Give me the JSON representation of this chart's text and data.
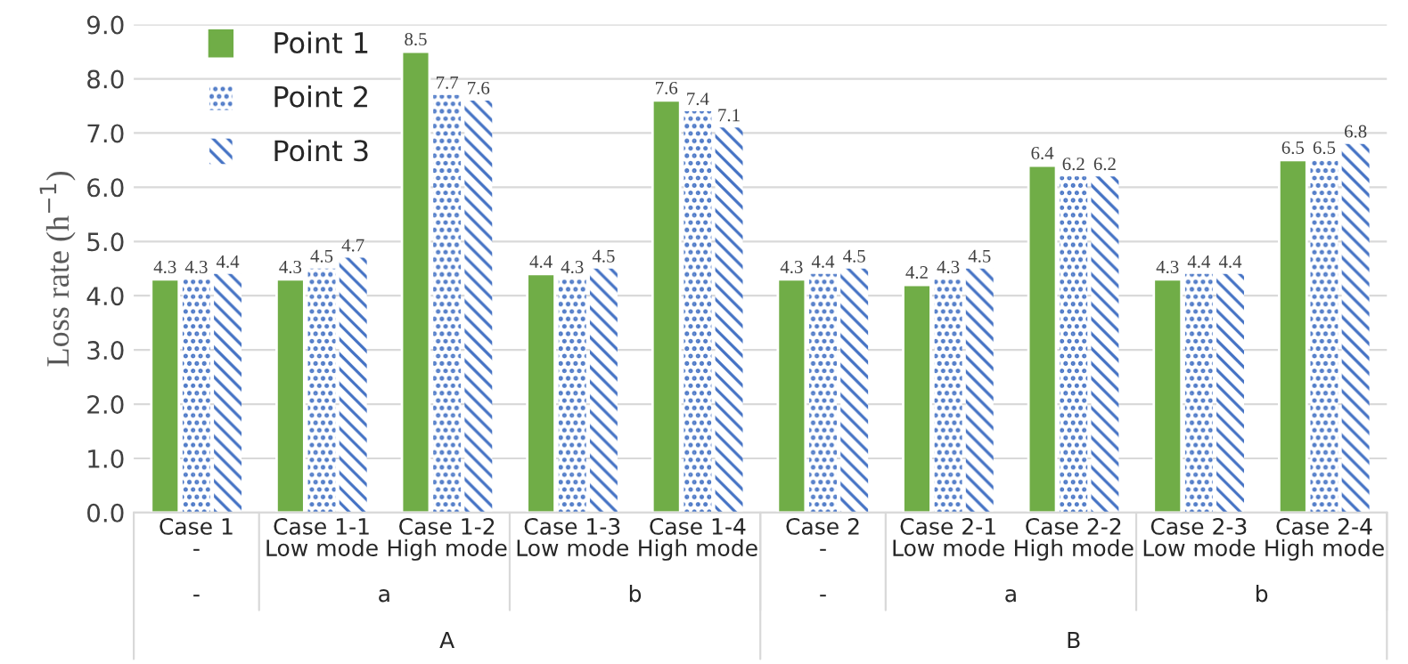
{
  "chart_data": {
    "type": "bar",
    "ylabel": "Loss rate (h$^{−1}$)",
    "categories": [
      "Case 1\n-",
      "Case 1-1\nLow mode",
      "Case 1-2\nHigh mode",
      "Case 1-3\nLow mode",
      "Case 1-4\nHigh mode",
      "Case 2\n-",
      "Case 2-1\nLow mode",
      "Case 2-2\nHigh mode",
      "Case 2-3\nLow mode",
      "Case 2-4\nHigh mode"
    ],
    "series": [
      {
        "name": "Point 1",
        "color": "#70ad47",
        "values": [
          4.3,
          4.3,
          8.5,
          4.4,
          7.6,
          4.3,
          4.2,
          6.4,
          4.3,
          6.5
        ]
      },
      {
        "name": "Point 2",
        "color": "#4472c4",
        "values": [
          4.3,
          4.5,
          7.7,
          4.3,
          7.4,
          4.4,
          4.3,
          6.2,
          4.4,
          6.5
        ]
      },
      {
        "name": "Point 3",
        "color": "#4472c4",
        "values": [
          4.4,
          4.7,
          7.6,
          4.5,
          7.1,
          4.5,
          4.5,
          6.2,
          4.4,
          6.8
        ]
      }
    ],
    "annotations": [
      "-",
      "a",
      "b",
      "-",
      "a",
      "b",
      "A",
      "B"
    ],
    "ylim": [
      0,
      9
    ],
    "yticks": [
      {
        "value": 0,
        "label": "0.0"
      },
      {
        "value": 1,
        "label": "1.0"
      },
      {
        "value": 2,
        "label": "2.0"
      },
      {
        "value": 3,
        "label": "3.0"
      },
      {
        "value": 4,
        "label": "4.0"
      },
      {
        "value": 5,
        "label": "5.0"
      },
      {
        "value": 6,
        "label": "6.0"
      },
      {
        "value": 7,
        "label": "7.0"
      },
      {
        "value": 8,
        "label": "8.0"
      },
      {
        "value": 9,
        "label": "9.0"
      }
    ],
    "grid": "y",
    "legend": "top left",
    "data_labels": true
  }
}
